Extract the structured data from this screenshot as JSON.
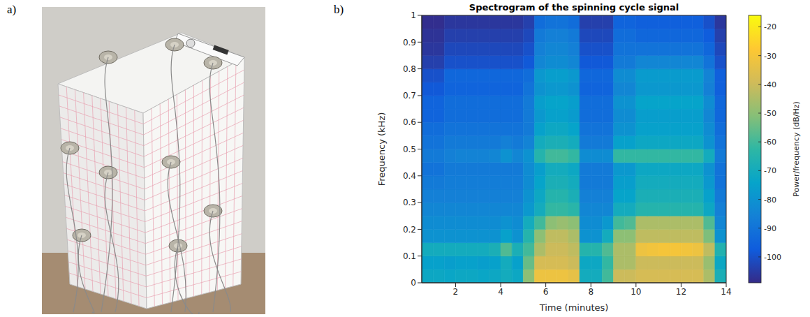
{
  "panel_a": {
    "label": "a)"
  },
  "chart_data": {
    "type": "heatmap",
    "panel_label": "b)",
    "title": "Spectrogram of the spinning cycle signal",
    "x_label": "Time (minutes)",
    "y_label": "Frequency (kHz)",
    "xlim": [
      0.5,
      14
    ],
    "xticks": [
      2,
      4,
      6,
      8,
      10,
      12,
      14
    ],
    "ylim": [
      0,
      1
    ],
    "yticks": [
      0,
      0.1,
      0.2,
      0.3,
      0.4,
      0.5,
      0.6,
      0.7,
      0.8,
      0.9,
      1
    ],
    "x_edges": [
      0.5,
      1,
      1.5,
      2,
      2.5,
      3,
      3.5,
      4,
      4.5,
      5,
      5.5,
      6,
      6.5,
      7,
      7.5,
      8,
      8.5,
      9,
      9.5,
      10,
      10.5,
      11,
      11.5,
      12,
      12.5,
      13,
      13.5,
      14
    ],
    "y_edges": [
      0,
      0.05,
      0.1,
      0.15,
      0.2,
      0.25,
      0.3,
      0.35,
      0.4,
      0.45,
      0.5,
      0.55,
      0.6,
      0.65,
      0.7,
      0.75,
      0.8,
      0.85,
      0.9,
      0.95,
      1
    ],
    "power": [
      [
        -72,
        -72,
        -73,
        -72,
        -72,
        -73,
        -72,
        -70,
        -72,
        -50,
        -32,
        -32,
        -32,
        -34,
        -70,
        -70,
        -60,
        -40,
        -40,
        -38,
        -38,
        -38,
        -38,
        -38,
        -38,
        -45,
        -68
      ],
      [
        -75,
        -75,
        -76,
        -75,
        -75,
        -76,
        -75,
        -70,
        -75,
        -55,
        -38,
        -38,
        -38,
        -40,
        -72,
        -72,
        -62,
        -45,
        -45,
        -40,
        -40,
        -40,
        -40,
        -40,
        -40,
        -48,
        -72
      ],
      [
        -70,
        -70,
        -70,
        -70,
        -70,
        -70,
        -68,
        -58,
        -68,
        -60,
        -45,
        -40,
        -40,
        -42,
        -65,
        -65,
        -58,
        -45,
        -45,
        -32,
        -31,
        -30,
        -30,
        -31,
        -32,
        -42,
        -66
      ],
      [
        -80,
        -80,
        -80,
        -80,
        -80,
        -80,
        -80,
        -75,
        -80,
        -65,
        -50,
        -42,
        -42,
        -45,
        -80,
        -80,
        -70,
        -50,
        -50,
        -42,
        -42,
        -42,
        -42,
        -42,
        -42,
        -52,
        -80
      ],
      [
        -82,
        -82,
        -82,
        -82,
        -82,
        -82,
        -82,
        -80,
        -82,
        -70,
        -60,
        -50,
        -48,
        -50,
        -82,
        -82,
        -78,
        -60,
        -58,
        -45,
        -45,
        -45,
        -45,
        -45,
        -45,
        -58,
        -84
      ],
      [
        -84,
        -84,
        -84,
        -84,
        -84,
        -84,
        -84,
        -84,
        -84,
        -78,
        -70,
        -62,
        -62,
        -64,
        -84,
        -84,
        -84,
        -70,
        -70,
        -65,
        -65,
        -65,
        -65,
        -65,
        -65,
        -72,
        -86
      ],
      [
        -86,
        -86,
        -86,
        -86,
        -86,
        -86,
        -86,
        -86,
        -86,
        -80,
        -72,
        -65,
        -65,
        -68,
        -86,
        -86,
        -86,
        -74,
        -74,
        -68,
        -68,
        -68,
        -68,
        -68,
        -68,
        -75,
        -88
      ],
      [
        -88,
        -88,
        -87,
        -87,
        -87,
        -87,
        -87,
        -87,
        -87,
        -82,
        -74,
        -68,
        -68,
        -70,
        -88,
        -88,
        -88,
        -76,
        -76,
        -70,
        -70,
        -70,
        -70,
        -70,
        -70,
        -78,
        -90
      ],
      [
        -90,
        -90,
        -88,
        -88,
        -88,
        -88,
        -88,
        -88,
        -88,
        -82,
        -76,
        -70,
        -70,
        -72,
        -88,
        -88,
        -88,
        -78,
        -78,
        -72,
        -72,
        -72,
        -72,
        -72,
        -72,
        -80,
        -90
      ],
      [
        -88,
        -88,
        -86,
        -85,
        -85,
        -85,
        -84,
        -80,
        -84,
        -80,
        -65,
        -60,
        -60,
        -62,
        -82,
        -82,
        -82,
        -62,
        -62,
        -62,
        -62,
        -62,
        -62,
        -62,
        -62,
        -70,
        -88
      ],
      [
        -90,
        -90,
        -88,
        -88,
        -88,
        -88,
        -88,
        -86,
        -88,
        -85,
        -70,
        -68,
        -68,
        -70,
        -88,
        -88,
        -88,
        -75,
        -75,
        -72,
        -72,
        -72,
        -72,
        -72,
        -72,
        -80,
        -90
      ],
      [
        -92,
        -92,
        -90,
        -90,
        -90,
        -90,
        -90,
        -90,
        -90,
        -88,
        -75,
        -72,
        -72,
        -74,
        -90,
        -90,
        -90,
        -80,
        -80,
        -75,
        -75,
        -75,
        -75,
        -75,
        -75,
        -82,
        -92
      ],
      [
        -95,
        -95,
        -92,
        -92,
        -92,
        -92,
        -92,
        -92,
        -92,
        -88,
        -78,
        -75,
        -75,
        -77,
        -92,
        -92,
        -92,
        -82,
        -82,
        -76,
        -76,
        -76,
        -76,
        -76,
        -76,
        -84,
        -94
      ],
      [
        -95,
        -95,
        -92,
        -92,
        -92,
        -92,
        -92,
        -92,
        -92,
        -88,
        -76,
        -74,
        -74,
        -76,
        -92,
        -92,
        -92,
        -80,
        -80,
        -74,
        -74,
        -74,
        -74,
        -74,
        -74,
        -82,
        -94
      ],
      [
        -98,
        -98,
        -95,
        -95,
        -95,
        -95,
        -95,
        -95,
        -95,
        -90,
        -80,
        -78,
        -78,
        -80,
        -95,
        -95,
        -95,
        -84,
        -84,
        -78,
        -78,
        -78,
        -78,
        -78,
        -78,
        -86,
        -96
      ],
      [
        -100,
        -100,
        -94,
        -94,
        -94,
        -94,
        -94,
        -94,
        -94,
        -92,
        -78,
        -76,
        -76,
        -78,
        -94,
        -94,
        -94,
        -82,
        -82,
        -77,
        -77,
        -77,
        -77,
        -77,
        -77,
        -85,
        -96
      ],
      [
        -104,
        -104,
        -100,
        -100,
        -100,
        -100,
        -100,
        -100,
        -100,
        -98,
        -84,
        -82,
        -82,
        -84,
        -98,
        -98,
        -98,
        -88,
        -88,
        -84,
        -84,
        -84,
        -84,
        -84,
        -84,
        -90,
        -100
      ],
      [
        -106,
        -106,
        -102,
        -102,
        -102,
        -102,
        -102,
        -102,
        -102,
        -100,
        -86,
        -84,
        -84,
        -86,
        -100,
        -100,
        -100,
        -90,
        -90,
        -90,
        -90,
        -90,
        -90,
        -90,
        -90,
        -94,
        -102
      ],
      [
        -107,
        -107,
        -104,
        -104,
        -104,
        -104,
        -104,
        -104,
        -104,
        -102,
        -88,
        -86,
        -86,
        -88,
        -102,
        -102,
        -102,
        -92,
        -92,
        -94,
        -94,
        -94,
        -94,
        -94,
        -94,
        -97,
        -104
      ],
      [
        -108,
        -108,
        -106,
        -106,
        -106,
        -106,
        -106,
        -106,
        -106,
        -104,
        -92,
        -90,
        -90,
        -92,
        -104,
        -104,
        -104,
        -95,
        -95,
        -96,
        -96,
        -96,
        -96,
        -96,
        -96,
        -100,
        -106
      ]
    ],
    "colorbar": {
      "label": "Power/frequency (dB/Hz)",
      "range": [
        -109,
        -16
      ],
      "ticks": [
        -100,
        -90,
        -80,
        -70,
        -60,
        -50,
        -40,
        -30,
        -20
      ]
    }
  }
}
